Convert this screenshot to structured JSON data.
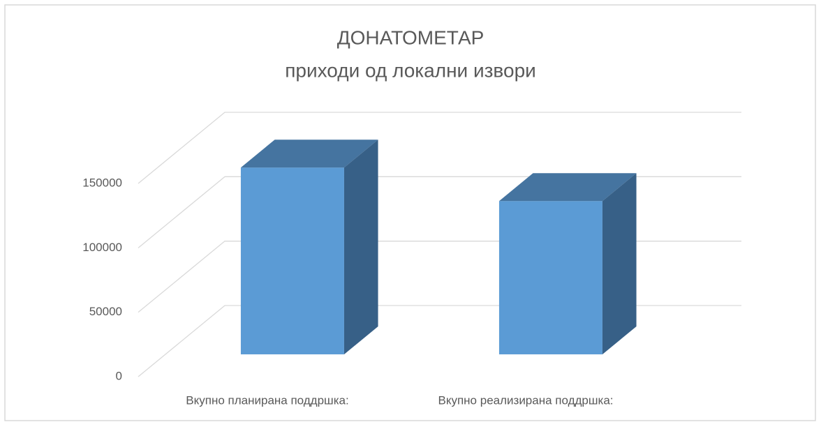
{
  "chart_data": {
    "type": "bar3d",
    "title": "ДОНАТОМЕТАР",
    "subtitle": "приходи од локални извори",
    "categories": [
      "Вкупно планирана поддршка:",
      "Вкупно реализирана поддршка:"
    ],
    "values": [
      145000,
      119000
    ],
    "color": "#5b9bd5",
    "ylim": [
      0,
      150000
    ],
    "yticks": [
      0,
      50000,
      100000,
      150000
    ],
    "grid": true
  }
}
